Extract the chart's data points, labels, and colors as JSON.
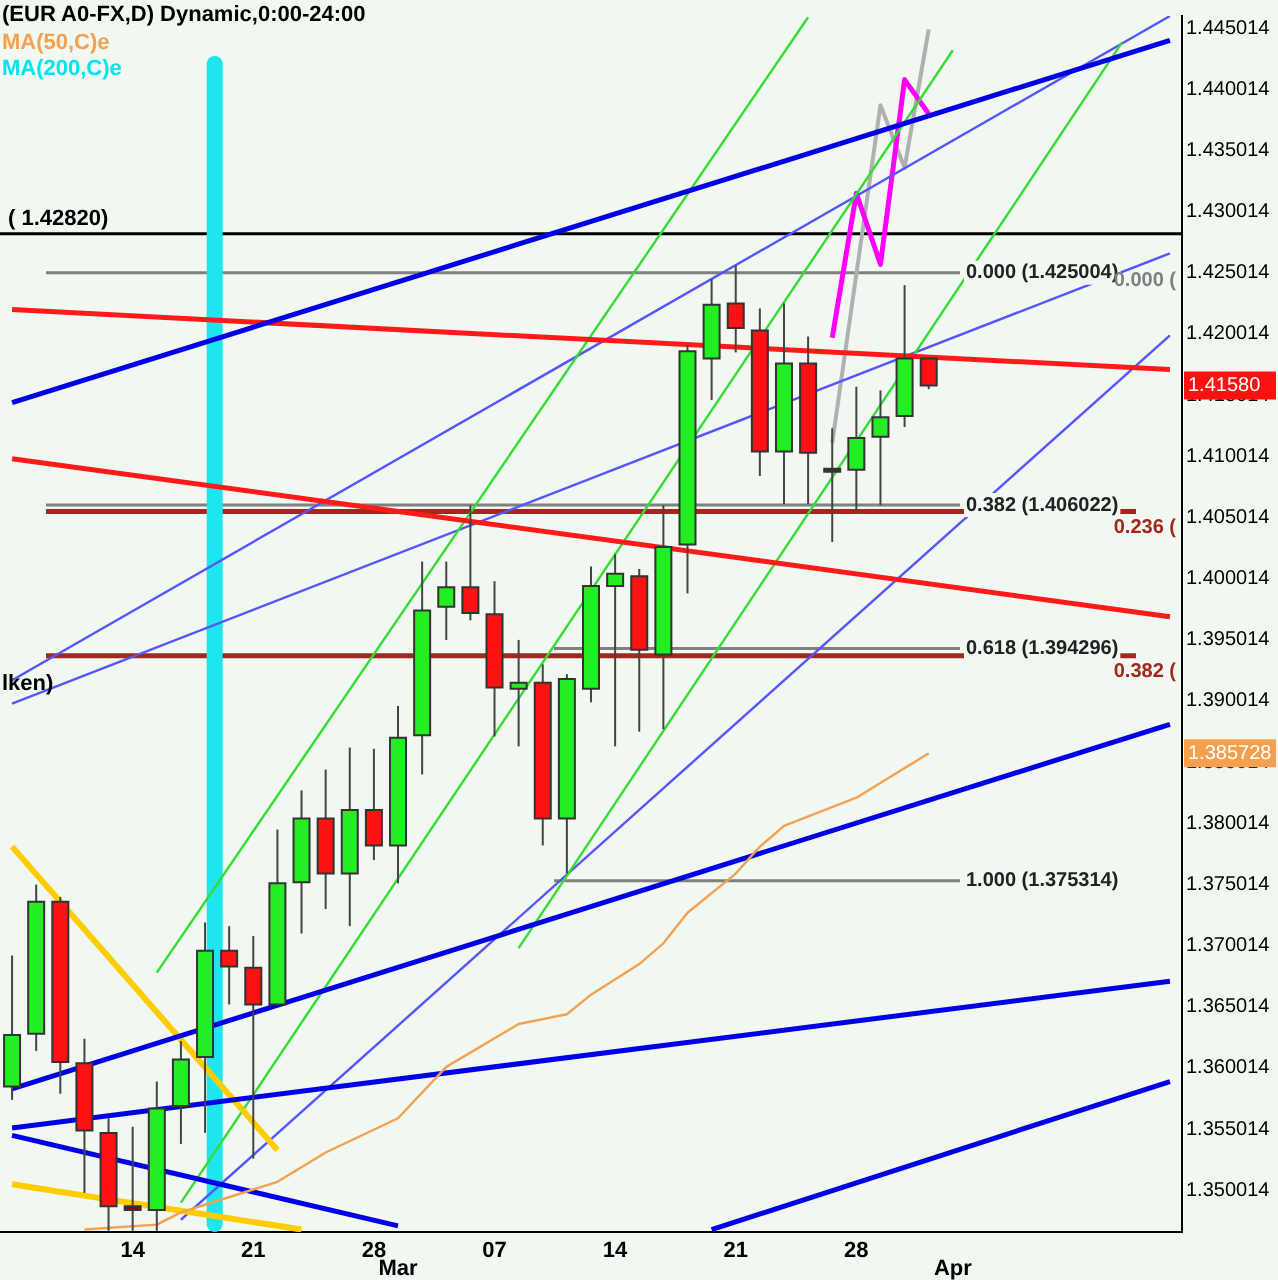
{
  "chart_data": {
    "type": "candlestick",
    "title": "(EUR A0-FX,D) Dynamic,0:00-24:00",
    "legend": "top left",
    "marker": "none",
    "categories": [
      null,
      null,
      null,
      null,
      null,
      "14",
      null,
      null,
      null,
      null,
      "21",
      null,
      null,
      null,
      null,
      "28",
      null,
      null,
      null,
      null,
      "07",
      null,
      null,
      null,
      null,
      "14",
      null,
      null,
      null,
      null,
      "21",
      null,
      null,
      null,
      null,
      "28",
      null,
      null,
      null,
      null,
      null,
      null,
      null,
      null,
      null,
      null,
      null,
      null,
      null
    ],
    "ohlc": [
      [
        1.3585,
        1.3692,
        1.3574,
        1.3627
      ],
      [
        1.3628,
        1.375,
        1.3614,
        1.3736
      ],
      [
        1.3736,
        1.374,
        1.3579,
        1.3605
      ],
      [
        1.3604,
        1.3624,
        1.3498,
        1.3549
      ],
      [
        1.3547,
        1.3559,
        1.3467,
        1.3487
      ],
      [
        1.3487,
        1.3552,
        1.3467,
        1.3484
      ],
      [
        1.3484,
        1.3589,
        1.3467,
        1.3567
      ],
      [
        1.3569,
        1.3622,
        1.3538,
        1.3607
      ],
      [
        1.3609,
        1.3719,
        1.3547,
        1.3696
      ],
      [
        1.3696,
        1.3716,
        1.3652,
        1.3683
      ],
      [
        1.3682,
        1.3708,
        1.3526,
        1.3652
      ],
      [
        1.3652,
        1.3795,
        1.3652,
        1.3751
      ],
      [
        1.3752,
        1.3827,
        1.371,
        1.3804
      ],
      [
        1.3804,
        1.3844,
        1.373,
        1.3759
      ],
      [
        1.3759,
        1.3862,
        1.3716,
        1.3811
      ],
      [
        1.3811,
        1.3861,
        1.377,
        1.3782
      ],
      [
        1.3782,
        1.3896,
        1.3751,
        1.387
      ],
      [
        1.3872,
        1.4014,
        1.384,
        1.3974
      ],
      [
        1.3977,
        1.4014,
        1.395,
        1.3993
      ],
      [
        1.3993,
        1.406,
        1.3966,
        1.3972
      ],
      [
        1.3971,
        1.3998,
        1.3871,
        1.3911
      ],
      [
        1.391,
        1.395,
        1.3863,
        1.3915
      ],
      [
        1.3915,
        1.393,
        1.3782,
        1.3804
      ],
      [
        1.3804,
        1.3922,
        1.3759,
        1.3918
      ],
      [
        1.391,
        1.401,
        1.3899,
        1.3994
      ],
      [
        1.3994,
        1.402,
        1.3863,
        1.4004
      ],
      [
        1.4002,
        1.4008,
        1.3875,
        1.3942
      ],
      [
        1.3938,
        1.406,
        1.3877,
        1.4026
      ],
      [
        1.4028,
        1.4191,
        1.3988,
        1.4186
      ],
      [
        1.418,
        1.4245,
        1.4146,
        1.4224
      ],
      [
        1.4225,
        1.4256,
        1.4185,
        1.4205
      ],
      [
        1.4203,
        1.4221,
        1.4084,
        1.4104
      ],
      [
        1.4104,
        1.4225,
        1.4061,
        1.4176
      ],
      [
        1.4176,
        1.4198,
        1.4061,
        1.4103
      ],
      [
        1.4089,
        1.4123,
        1.403,
        1.409
      ],
      [
        1.4089,
        1.4157,
        1.4054,
        1.4115
      ],
      [
        1.4116,
        1.4154,
        1.406,
        1.4132
      ],
      [
        1.4133,
        1.424,
        1.4124,
        1.418
      ],
      [
        1.418,
        1.418,
        1.4155,
        1.4158
      ],
      null,
      null,
      null,
      null,
      null,
      null,
      null,
      null,
      null,
      null
    ],
    "colors": [
      "#22ee22",
      "#22ee22",
      "#ff1111",
      "#ff1111",
      "#ff1111",
      "#8b0000",
      "#22ee22",
      "#22ee22",
      "#22ee22",
      "#ff1111",
      "#ff1111",
      "#22ee22",
      "#22ee22",
      "#ff1111",
      "#22ee22",
      "#ff1111",
      "#22ee22",
      "#22ee22",
      "#22ee22",
      "#ff1111",
      "#ff1111",
      "#22ee22",
      "#ff1111",
      "#22ee22",
      "#22ee22",
      "#22ee22",
      "#ff1111",
      "#22ee22",
      "#22ee22",
      "#22ee22",
      "#ff1111",
      "#ff1111",
      "#22ee22",
      "#ff1111",
      "#333333",
      "#22ee22",
      "#22ee22",
      "#22ee22",
      "#ff1111",
      null,
      null,
      null,
      null,
      null,
      null,
      null,
      null,
      null,
      null
    ],
    "series": [
      {
        "type": "line",
        "name": "MA(50,C)e",
        "color": "#f4a050",
        "values": [
          null,
          null,
          null,
          1.3468,
          null,
          null,
          1.3472,
          1.3482,
          null,
          null,
          null,
          1.3507,
          null,
          1.3531,
          null,
          null,
          1.3559,
          null,
          1.3601,
          null,
          null,
          1.3636,
          null,
          1.3644,
          1.366,
          null,
          1.3685,
          1.3702,
          1.3727,
          null,
          1.3759,
          1.3781,
          1.3798,
          null,
          null,
          1.3821,
          null,
          null,
          1.385728,
          null,
          null,
          null,
          null,
          null,
          null,
          null,
          null,
          null,
          null
        ]
      },
      {
        "type": "line",
        "name": "MA(200,C)e",
        "color": "#00e5ee",
        "values": [
          null,
          null,
          null,
          null,
          null,
          null,
          null,
          null,
          null,
          null,
          null,
          null,
          null,
          null,
          null,
          null,
          null,
          null,
          null,
          null,
          null,
          null,
          null,
          null,
          null,
          null,
          null,
          null,
          null,
          null,
          null,
          null,
          null,
          null,
          null,
          null,
          null,
          null,
          null,
          null,
          null,
          null,
          null,
          null,
          null,
          null,
          null,
          null,
          null
        ]
      },
      {
        "type": "line",
        "color": "#0000e6",
        "values": [
          1.4144,
          null,
          null,
          null,
          null,
          null,
          null,
          null,
          null,
          null,
          null,
          null,
          null,
          null,
          null,
          null,
          null,
          null,
          null,
          null,
          null,
          null,
          null,
          null,
          null,
          null,
          null,
          null,
          null,
          null,
          null,
          null,
          null,
          null,
          null,
          null,
          null,
          null,
          null,
          null,
          null,
          null,
          null,
          null,
          null,
          null,
          null,
          null,
          1.444
        ]
      },
      {
        "type": "line",
        "color": "#0000e6",
        "values": [
          1.3583,
          null,
          null,
          null,
          null,
          null,
          null,
          null,
          null,
          null,
          null,
          null,
          null,
          null,
          null,
          null,
          null,
          null,
          null,
          null,
          null,
          null,
          null,
          null,
          null,
          null,
          null,
          null,
          null,
          null,
          null,
          null,
          null,
          null,
          null,
          null,
          null,
          null,
          null,
          null,
          null,
          null,
          null,
          null,
          null,
          null,
          null,
          null,
          1.3881
        ]
      },
      {
        "type": "line",
        "color": "#0000e6",
        "values": [
          1.3551,
          null,
          null,
          null,
          null,
          null,
          null,
          null,
          null,
          null,
          null,
          null,
          null,
          null,
          null,
          null,
          null,
          null,
          null,
          null,
          null,
          null,
          null,
          null,
          null,
          null,
          null,
          null,
          null,
          null,
          null,
          null,
          null,
          null,
          null,
          null,
          null,
          null,
          null,
          null,
          null,
          null,
          null,
          null,
          null,
          null,
          null,
          null,
          1.3671
        ]
      },
      {
        "type": "line",
        "color": "#0000e6",
        "values": [
          null,
          null,
          null,
          null,
          null,
          null,
          null,
          null,
          null,
          null,
          null,
          null,
          null,
          null,
          null,
          null,
          null,
          null,
          null,
          null,
          null,
          null,
          null,
          null,
          null,
          null,
          null,
          null,
          null,
          1.3468,
          null,
          null,
          null,
          null,
          null,
          null,
          null,
          null,
          null,
          null,
          null,
          null,
          null,
          null,
          null,
          null,
          null,
          null,
          1.3589
        ]
      },
      {
        "type": "line",
        "color": "#0000e6",
        "values": [
          1.3545,
          null,
          null,
          null,
          null,
          null,
          null,
          null,
          null,
          null,
          null,
          null,
          null,
          null,
          null,
          null,
          1.3471,
          null,
          null,
          null,
          null,
          null,
          null,
          null,
          null,
          null,
          null,
          null,
          null,
          null,
          null,
          null,
          null,
          null,
          null,
          null,
          null,
          null,
          null,
          null,
          null,
          null,
          null,
          null,
          null,
          null,
          null,
          null,
          null
        ]
      },
      {
        "type": "line",
        "color": "#ff1a1a",
        "values": [
          1.422,
          null,
          null,
          null,
          null,
          null,
          null,
          null,
          null,
          null,
          null,
          null,
          null,
          null,
          null,
          null,
          null,
          null,
          null,
          null,
          null,
          null,
          null,
          null,
          null,
          null,
          null,
          null,
          null,
          null,
          null,
          null,
          null,
          null,
          null,
          null,
          null,
          null,
          null,
          null,
          null,
          null,
          null,
          null,
          null,
          null,
          null,
          null,
          1.4171
        ]
      },
      {
        "type": "line",
        "color": "#ff1a1a",
        "values": [
          1.4098,
          null,
          null,
          null,
          null,
          null,
          null,
          null,
          null,
          null,
          null,
          null,
          null,
          null,
          null,
          null,
          null,
          null,
          null,
          null,
          null,
          null,
          null,
          null,
          null,
          null,
          null,
          null,
          null,
          null,
          null,
          null,
          null,
          null,
          null,
          null,
          null,
          null,
          null,
          null,
          null,
          null,
          null,
          null,
          null,
          null,
          null,
          null,
          1.3969
        ]
      },
      {
        "type": "line",
        "color": "#ffcc00",
        "values": [
          1.3781,
          null,
          null,
          null,
          null,
          null,
          null,
          null,
          null,
          null,
          null,
          1.3533,
          null,
          null,
          null,
          null,
          null,
          null,
          null,
          null,
          null,
          null,
          null,
          null,
          null,
          null,
          null,
          null,
          null,
          null,
          null,
          null,
          null,
          null,
          null,
          null,
          null,
          null,
          null,
          null,
          null,
          null,
          null,
          null,
          null,
          null,
          null,
          null,
          null
        ]
      },
      {
        "type": "line",
        "color": "#ffcc00",
        "values": [
          1.3505,
          null,
          null,
          null,
          null,
          null,
          null,
          null,
          null,
          null,
          null,
          null,
          1.3468,
          null,
          null,
          null,
          null,
          null,
          null,
          null,
          null,
          null,
          null,
          null,
          null,
          null,
          null,
          null,
          null,
          null,
          null,
          null,
          null,
          null,
          null,
          null,
          null,
          null,
          null,
          null,
          null,
          null,
          null,
          null,
          null,
          null,
          null,
          null,
          null
        ]
      },
      {
        "type": "line",
        "color": "#33dd33",
        "values": [
          null,
          null,
          null,
          null,
          null,
          null,
          1.3678,
          null,
          null,
          null,
          null,
          null,
          null,
          null,
          null,
          null,
          null,
          null,
          null,
          null,
          null,
          null,
          null,
          null,
          null,
          null,
          null,
          null,
          null,
          null,
          null,
          null,
          null,
          1.4459,
          null,
          null,
          null,
          null,
          null,
          null,
          null,
          null,
          null,
          null,
          null,
          null,
          null,
          null,
          null
        ]
      },
      {
        "type": "line",
        "color": "#33dd33",
        "values": [
          null,
          null,
          null,
          null,
          null,
          null,
          null,
          1.349,
          null,
          null,
          null,
          null,
          null,
          null,
          null,
          null,
          null,
          null,
          null,
          null,
          null,
          null,
          null,
          null,
          null,
          null,
          null,
          null,
          null,
          null,
          null,
          null,
          null,
          null,
          null,
          null,
          null,
          null,
          null,
          1.4432,
          null,
          null,
          null,
          null,
          null,
          null,
          null,
          null,
          null
        ]
      },
      {
        "type": "line",
        "color": "#33dd33",
        "values": [
          null,
          null,
          null,
          null,
          null,
          null,
          null,
          null,
          null,
          null,
          null,
          null,
          null,
          null,
          null,
          null,
          null,
          null,
          null,
          null,
          null,
          1.3698,
          null,
          null,
          null,
          null,
          null,
          null,
          null,
          null,
          null,
          null,
          null,
          null,
          null,
          null,
          null,
          null,
          null,
          null,
          null,
          null,
          null,
          null,
          null,
          null,
          1.4438,
          null,
          null
        ]
      },
      {
        "type": "line",
        "color": "#5555ff",
        "values": [
          1.3917,
          null,
          null,
          null,
          null,
          null,
          null,
          null,
          null,
          null,
          null,
          null,
          null,
          null,
          null,
          null,
          null,
          null,
          null,
          null,
          null,
          null,
          null,
          null,
          null,
          null,
          null,
          null,
          null,
          null,
          null,
          null,
          null,
          null,
          null,
          null,
          null,
          null,
          null,
          null,
          null,
          null,
          null,
          null,
          null,
          null,
          null,
          null,
          1.446
        ]
      },
      {
        "type": "line",
        "color": "#5555ff",
        "values": [
          1.3898,
          null,
          null,
          null,
          null,
          null,
          null,
          null,
          null,
          null,
          null,
          null,
          null,
          null,
          null,
          null,
          null,
          null,
          null,
          null,
          null,
          null,
          null,
          null,
          null,
          null,
          null,
          null,
          null,
          null,
          null,
          null,
          null,
          null,
          null,
          null,
          null,
          null,
          null,
          null,
          null,
          null,
          null,
          null,
          null,
          null,
          null,
          null,
          1.4266
        ]
      },
      {
        "type": "line",
        "color": "#5555ff",
        "values": [
          null,
          null,
          null,
          null,
          null,
          null,
          null,
          1.3476,
          null,
          null,
          null,
          null,
          null,
          null,
          null,
          null,
          null,
          null,
          null,
          null,
          null,
          null,
          null,
          null,
          null,
          null,
          null,
          null,
          null,
          null,
          null,
          null,
          null,
          null,
          null,
          null,
          null,
          null,
          null,
          null,
          null,
          null,
          null,
          null,
          null,
          null,
          null,
          null,
          1.4199
        ]
      },
      {
        "type": "line",
        "color": "#ff00ff",
        "values": [
          null,
          null,
          null,
          null,
          null,
          null,
          null,
          null,
          null,
          null,
          null,
          null,
          null,
          null,
          null,
          null,
          null,
          null,
          null,
          null,
          null,
          null,
          null,
          null,
          null,
          null,
          null,
          null,
          null,
          null,
          null,
          null,
          null,
          null,
          1.4197,
          1.4315,
          1.4257,
          1.4408,
          1.438,
          null,
          null,
          null,
          null,
          null,
          null,
          null,
          null,
          null,
          null
        ]
      },
      {
        "type": "line",
        "color": "#b0b0b0",
        "values": [
          null,
          null,
          null,
          null,
          null,
          null,
          null,
          null,
          null,
          null,
          null,
          null,
          null,
          null,
          null,
          null,
          null,
          null,
          null,
          null,
          null,
          null,
          null,
          null,
          null,
          null,
          null,
          null,
          null,
          null,
          null,
          null,
          null,
          null,
          1.4111,
          null,
          1.4387,
          1.4336,
          1.4449,
          null,
          null,
          null,
          null,
          null,
          null,
          null,
          null,
          null,
          null
        ]
      }
    ],
    "ylim": [
      1.3466,
      1.446
    ],
    "yticks": [
      1.350014,
      1.355014,
      1.360014,
      1.365014,
      1.370014,
      1.375014,
      1.380014,
      1.385014,
      1.390014,
      1.395014,
      1.400014,
      1.405014,
      1.410014,
      1.415014,
      1.420014,
      1.425014,
      1.430014,
      1.435014,
      1.440014,
      1.445014,
      {
        "value": 1.4158,
        "label": "1.41580"
      },
      {
        "value": 1.385728,
        "label": "1.385728"
      }
    ],
    "ref_lines": [
      {
        "axis": "y",
        "value": 1.4282,
        "label": "( 1.42820)",
        "color": "#000000"
      },
      {
        "axis": "y",
        "value": 1.425004,
        "label": "0.000 (1.425004)",
        "color": "#808080"
      },
      {
        "axis": "y",
        "value": 1.406022,
        "label": "0.382 (1.406022)",
        "color": "#808080"
      },
      {
        "axis": "y",
        "value": 1.394296,
        "label": "0.618 (1.394296)",
        "color": "#808080"
      },
      {
        "axis": "y",
        "value": 1.375314,
        "label": "1.000 (1.375314)",
        "color": "#808080"
      },
      {
        "axis": "y",
        "value": 1.4055,
        "color": "#a0281e"
      },
      {
        "axis": "y",
        "value": 1.3937,
        "color": "#a0281e"
      }
    ],
    "annotations": [
      "lken)",
      "Mar",
      "Apr",
      "0.000 (",
      {
        "text": "0.236 (",
        "y": 1.4055
      },
      {
        "text": "0.382 (",
        "y": 1.3937
      }
    ]
  }
}
